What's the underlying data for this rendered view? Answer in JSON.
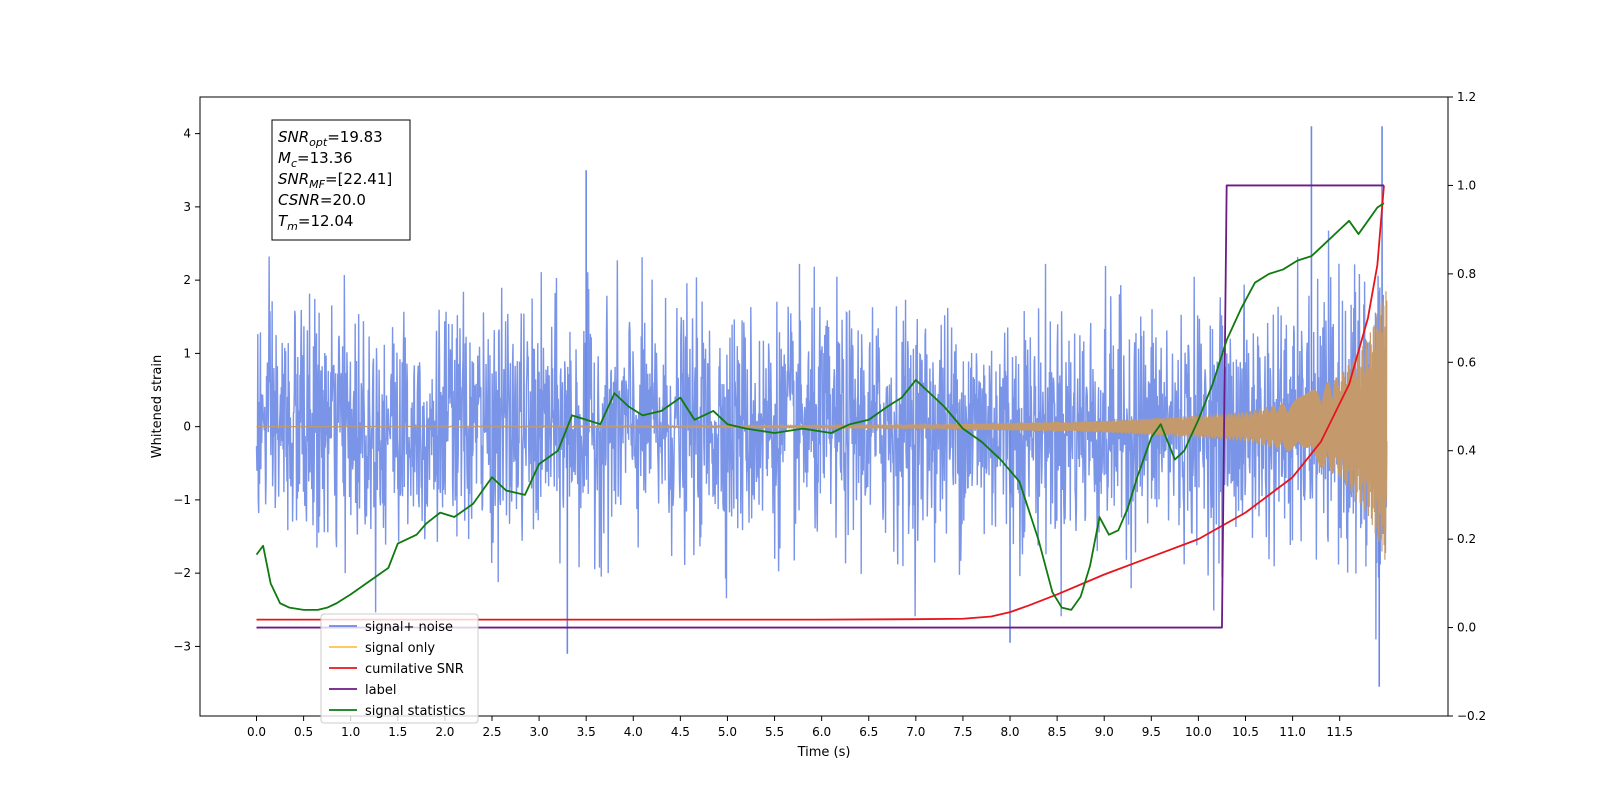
{
  "chart_data": {
    "type": "line",
    "title": "",
    "xlabel": "Time (s)",
    "ylabel_left": "Whitened strain",
    "ylabel_right": "",
    "xlim": [
      -0.6,
      12.65
    ],
    "ylim_left": [
      -3.95,
      4.5
    ],
    "ylim_right": [
      -0.2,
      1.2
    ],
    "x_ticks": [
      0.0,
      0.5,
      1.0,
      1.5,
      2.0,
      2.5,
      3.0,
      3.5,
      4.0,
      4.5,
      5.0,
      5.5,
      6.0,
      6.5,
      7.0,
      7.5,
      8.0,
      8.5,
      9.0,
      9.5,
      10.0,
      10.5,
      11.0,
      11.5
    ],
    "x_tick_labels": [
      "0.0",
      "0.5",
      "1.0",
      "1.5",
      "2.0",
      "2.5",
      "3.0",
      "3.5",
      "4.0",
      "4.5",
      "5.0",
      "5.5",
      "6.0",
      "6.5",
      "7.0",
      "7.5",
      "8.0",
      "8.5",
      "9.0",
      "9.5",
      "10.0",
      "10.5",
      "11.0",
      "11.5"
    ],
    "y_left_ticks": [
      -3,
      -2,
      -1,
      0,
      1,
      2,
      3,
      4
    ],
    "y_left_tick_labels": [
      "−3",
      "−2",
      "−1",
      "0",
      "1",
      "2",
      "3",
      "4"
    ],
    "y_right_ticks": [
      -0.2,
      0.0,
      0.2,
      0.4,
      0.6,
      0.8,
      1.0,
      1.2
    ],
    "y_right_tick_labels": [
      "−0.2",
      "0.0",
      "0.2",
      "0.4",
      "0.6",
      "0.8",
      "1.0",
      "1.2"
    ],
    "grid": false,
    "legend_position": "lower-left",
    "annotation_box": {
      "position": "top-left",
      "lines": [
        {
          "base": "SNR",
          "sub": "opt",
          "value": "=19.83"
        },
        {
          "base": "M",
          "sub": "c",
          "value": "=13.36"
        },
        {
          "base": "SNR",
          "sub": "MF",
          "value": "=[22.41]"
        },
        {
          "base": "CSNR",
          "sub": "",
          "value": "=20.0"
        },
        {
          "base": "T",
          "sub": "m",
          "value": "=12.04"
        }
      ]
    },
    "series": [
      {
        "name": "signal+ noise",
        "axis": "left",
        "color": "#6b88e4",
        "kind": "noise_envelope",
        "x_range": [
          0.0,
          12.0
        ],
        "std": 0.78,
        "peak_values": [
          [
            3.5,
            3.5
          ],
          [
            8.0,
            -2.95
          ],
          [
            11.2,
            4.1
          ],
          [
            11.95,
            4.1
          ],
          [
            11.92,
            -3.55
          ],
          [
            3.3,
            -3.1
          ]
        ]
      },
      {
        "name": "signal only",
        "axis": "left",
        "color": "#ffc14d",
        "kind": "chirp",
        "x_range": [
          0.0,
          12.0
        ],
        "amplitude_points": [
          [
            0.0,
            0.0
          ],
          [
            7.0,
            0.02
          ],
          [
            8.0,
            0.05
          ],
          [
            9.0,
            0.08
          ],
          [
            10.0,
            0.15
          ],
          [
            10.5,
            0.2
          ],
          [
            11.0,
            0.35
          ],
          [
            11.5,
            0.7
          ],
          [
            11.8,
            1.2
          ],
          [
            12.0,
            1.9
          ]
        ]
      },
      {
        "name": "cumilative SNR",
        "axis": "right",
        "color": "#e8141c",
        "x": [
          0.0,
          1.0,
          2.0,
          3.0,
          4.0,
          5.0,
          6.0,
          7.0,
          7.5,
          7.8,
          8.0,
          8.2,
          8.5,
          9.0,
          9.5,
          10.0,
          10.5,
          11.0,
          11.3,
          11.6,
          11.8,
          11.9,
          11.97
        ],
        "y": [
          0.018,
          0.018,
          0.018,
          0.018,
          0.018,
          0.018,
          0.018,
          0.019,
          0.02,
          0.025,
          0.035,
          0.05,
          0.075,
          0.12,
          0.16,
          0.2,
          0.26,
          0.34,
          0.42,
          0.55,
          0.7,
          0.82,
          1.0
        ]
      },
      {
        "name": "label",
        "axis": "right",
        "color": "#6c1a86",
        "x": [
          0.0,
          10.25,
          10.3,
          11.97
        ],
        "y": [
          0.0,
          0.0,
          1.0,
          1.0
        ]
      },
      {
        "name": "signal statistics",
        "axis": "right",
        "color": "#107a10",
        "x": [
          0.0,
          0.07,
          0.15,
          0.25,
          0.35,
          0.5,
          0.65,
          0.75,
          0.85,
          1.0,
          1.2,
          1.4,
          1.5,
          1.7,
          1.8,
          1.95,
          2.1,
          2.3,
          2.5,
          2.65,
          2.85,
          3.0,
          3.2,
          3.35,
          3.5,
          3.65,
          3.8,
          3.95,
          4.1,
          4.3,
          4.5,
          4.65,
          4.85,
          5.0,
          5.2,
          5.5,
          5.8,
          6.1,
          6.3,
          6.5,
          6.7,
          6.85,
          7.0,
          7.15,
          7.3,
          7.5,
          7.7,
          7.9,
          8.1,
          8.3,
          8.45,
          8.55,
          8.65,
          8.75,
          8.85,
          8.95,
          9.05,
          9.15,
          9.25,
          9.35,
          9.5,
          9.6,
          9.75,
          9.85,
          10.0,
          10.15,
          10.3,
          10.45,
          10.6,
          10.75,
          10.9,
          11.05,
          11.2,
          11.35,
          11.5,
          11.6,
          11.7,
          11.8,
          11.9,
          11.97
        ],
        "y": [
          0.165,
          0.185,
          0.1,
          0.055,
          0.045,
          0.04,
          0.04,
          0.045,
          0.055,
          0.075,
          0.105,
          0.135,
          0.19,
          0.21,
          0.235,
          0.26,
          0.25,
          0.28,
          0.34,
          0.31,
          0.3,
          0.37,
          0.4,
          0.48,
          0.47,
          0.46,
          0.53,
          0.5,
          0.48,
          0.49,
          0.52,
          0.47,
          0.49,
          0.46,
          0.45,
          0.44,
          0.45,
          0.44,
          0.46,
          0.47,
          0.5,
          0.52,
          0.56,
          0.53,
          0.5,
          0.45,
          0.42,
          0.38,
          0.33,
          0.2,
          0.08,
          0.045,
          0.04,
          0.07,
          0.14,
          0.25,
          0.21,
          0.22,
          0.27,
          0.34,
          0.43,
          0.46,
          0.38,
          0.4,
          0.47,
          0.55,
          0.65,
          0.72,
          0.78,
          0.8,
          0.81,
          0.83,
          0.84,
          0.87,
          0.9,
          0.92,
          0.89,
          0.92,
          0.95,
          0.96
        ]
      }
    ]
  }
}
